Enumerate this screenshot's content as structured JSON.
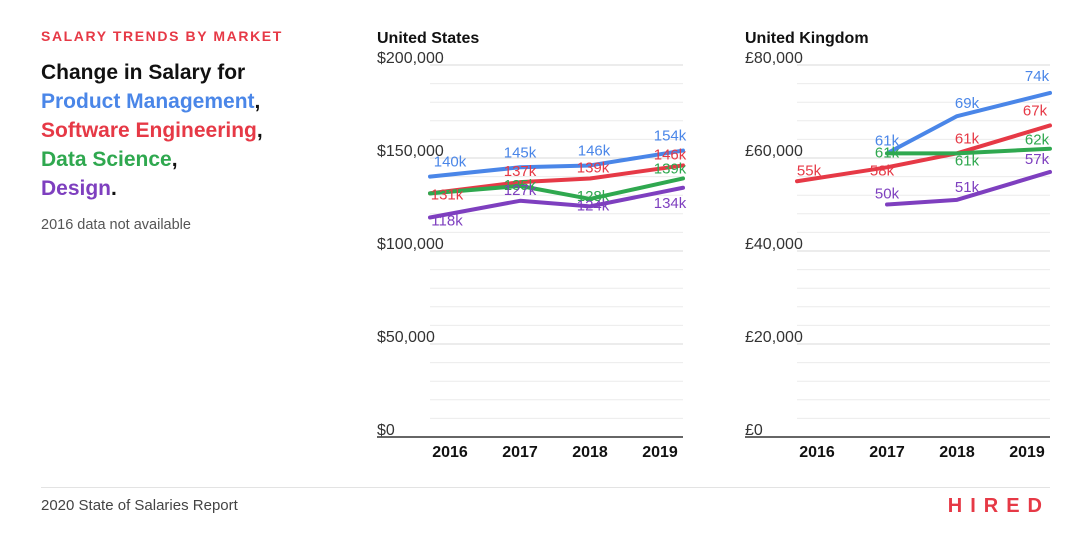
{
  "header": {
    "eyebrow": "SALARY TRENDS BY MARKET",
    "intro": "Change in Salary for",
    "roles": [
      {
        "label": "Product Management",
        "punct": ",",
        "color": "#4a86e8"
      },
      {
        "label": "Software Engineering",
        "punct": ",",
        "color": "#e63946"
      },
      {
        "label": "Data Science",
        "punct": ",",
        "color": "#2fa84f"
      },
      {
        "label": "Design",
        "punct": ".",
        "color": "#7e3fbf"
      }
    ],
    "note": "2016 data not available"
  },
  "footer": {
    "report": "2020 State of Salaries Report",
    "logo": "HIRED"
  },
  "colors": {
    "accent": "#e63946",
    "grid": "#e6e6e6",
    "axis": "#333333",
    "text": "#222222"
  },
  "chart_data": [
    {
      "type": "line",
      "title": "United States",
      "categories": [
        "2016",
        "2017",
        "2018",
        "2019"
      ],
      "ylim": [
        0,
        200000
      ],
      "ytick_values": [
        0,
        50000,
        100000,
        150000,
        200000
      ],
      "ytick_labels": [
        "$0",
        "$50,000",
        "$100,000",
        "$150,000",
        "$200,000"
      ],
      "grid": true,
      "series": [
        {
          "name": "Product Management",
          "color": "#4a86e8",
          "values": [
            140000,
            145000,
            146000,
            154000
          ],
          "labels": [
            "140k",
            "145k",
            "146k",
            "154k"
          ]
        },
        {
          "name": "Software Engineering",
          "color": "#e63946",
          "values": [
            131000,
            137000,
            139000,
            146000
          ],
          "labels": [
            "131k",
            "137k",
            "139k",
            "146k"
          ]
        },
        {
          "name": "Data Science",
          "color": "#2fa84f",
          "values": [
            131000,
            135000,
            128000,
            139000
          ],
          "labels": [
            "",
            "135k",
            "128k",
            "139k"
          ]
        },
        {
          "name": "Design",
          "color": "#7e3fbf",
          "values": [
            118000,
            127000,
            124000,
            134000
          ],
          "labels": [
            "118k",
            "127k",
            "124k",
            "134k"
          ]
        }
      ]
    },
    {
      "type": "line",
      "title": "United Kingdom",
      "categories": [
        "2016",
        "2017",
        "2018",
        "2019"
      ],
      "ylim": [
        0,
        80000
      ],
      "ytick_values": [
        0,
        20000,
        40000,
        60000,
        80000
      ],
      "ytick_labels": [
        "£0",
        "£20,000",
        "£40,000",
        "£60,000",
        "£80,000"
      ],
      "grid": true,
      "series": [
        {
          "name": "Product Management",
          "color": "#4a86e8",
          "values": [
            null,
            61000,
            69000,
            74000
          ],
          "labels": [
            "",
            "61k",
            "69k",
            "74k"
          ]
        },
        {
          "name": "Software Engineering",
          "color": "#e63946",
          "values": [
            55000,
            58000,
            61000,
            67000
          ],
          "labels": [
            "55k",
            "58k",
            "61k",
            "67k"
          ]
        },
        {
          "name": "Data Science",
          "color": "#2fa84f",
          "values": [
            null,
            61000,
            61000,
            62000
          ],
          "labels": [
            "",
            "61k",
            "61k",
            "62k"
          ]
        },
        {
          "name": "Design",
          "color": "#7e3fbf",
          "values": [
            null,
            50000,
            51000,
            57000
          ],
          "labels": [
            "",
            "50k",
            "51k",
            "57k"
          ]
        }
      ]
    }
  ]
}
